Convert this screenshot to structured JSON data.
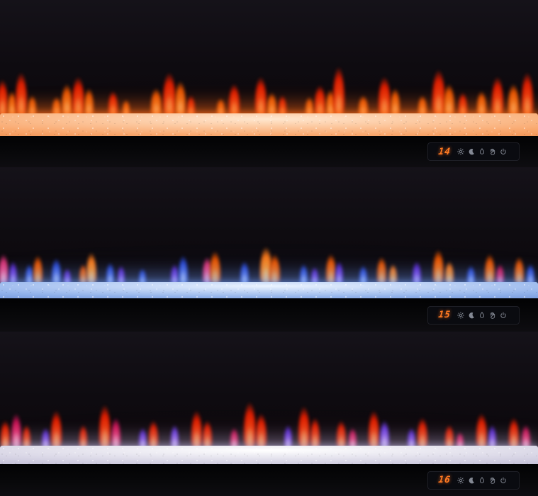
{
  "palette": {
    "digit_color": "#ff7a22",
    "icon_color": "#9aa0ac",
    "panel_bg": "#0a0b10",
    "panel_border": "#1e1f26",
    "bar_color": "#060607",
    "wall_color": "#141119"
  },
  "flame_colors": {
    "red": [
      "#ffb066",
      "#ff5a1c",
      "#e81e00"
    ],
    "orange": [
      "#ffd08a",
      "#ff9232",
      "#f05600"
    ],
    "amber": [
      "#ffe2a8",
      "#ffb347",
      "#ff7a1a"
    ],
    "blue": [
      "#cfe0ff",
      "#7a9bff",
      "#2a4ad8"
    ],
    "purple": [
      "#d8c2ff",
      "#a06aff",
      "#5a2ad0"
    ],
    "pink": [
      "#ffd2e8",
      "#ff7ab0",
      "#e0357a"
    ],
    "magenta": [
      "#ffc2d8",
      "#ff4a86",
      "#d01458"
    ],
    "violet": [
      "#e0ccff",
      "#b07aff",
      "#6a3ae0"
    ]
  },
  "display": {
    "icons": [
      "brightness",
      "moon",
      "flame",
      "hand",
      "power"
    ]
  },
  "sections": [
    {
      "id": "fireplace-orange-mode",
      "temperature": "14",
      "bed": {
        "hi": "#ffe7cf",
        "base": "#f9a86e",
        "mid": "#e06a20",
        "glow": "rgba(255,110,25,0.55)",
        "ambient": "rgba(255,70,10,0.22)"
      },
      "flames": [
        [
          0.5,
          52,
          15,
          "red"
        ],
        [
          2.2,
          36,
          12,
          "orange"
        ],
        [
          4,
          62,
          16,
          "red"
        ],
        [
          6,
          30,
          11,
          "orange"
        ],
        [
          10.5,
          28,
          12,
          "orange"
        ],
        [
          12.5,
          46,
          15,
          "orange"
        ],
        [
          14.5,
          56,
          17,
          "red"
        ],
        [
          16.5,
          40,
          13,
          "orange"
        ],
        [
          21,
          36,
          13,
          "red"
        ],
        [
          23.5,
          24,
          10,
          "orange"
        ],
        [
          29,
          40,
          15,
          "orange"
        ],
        [
          31.5,
          62,
          18,
          "red"
        ],
        [
          33.5,
          50,
          15,
          "orange"
        ],
        [
          35.5,
          30,
          11,
          "red"
        ],
        [
          41,
          26,
          11,
          "orange"
        ],
        [
          43.5,
          46,
          15,
          "red"
        ],
        [
          48.5,
          56,
          16,
          "red"
        ],
        [
          50.5,
          34,
          13,
          "orange"
        ],
        [
          52.5,
          30,
          11,
          "red"
        ],
        [
          57.5,
          28,
          11,
          "orange"
        ],
        [
          59.5,
          44,
          15,
          "red"
        ],
        [
          61.5,
          38,
          13,
          "orange"
        ],
        [
          63,
          70,
          16,
          "red"
        ],
        [
          67.5,
          30,
          13,
          "orange"
        ],
        [
          71.5,
          56,
          17,
          "red"
        ],
        [
          73.5,
          40,
          13,
          "orange"
        ],
        [
          78.5,
          30,
          12,
          "orange"
        ],
        [
          81.5,
          66,
          18,
          "red"
        ],
        [
          83.5,
          46,
          15,
          "orange"
        ],
        [
          86,
          34,
          12,
          "red"
        ],
        [
          89.5,
          36,
          13,
          "orange"
        ],
        [
          92.5,
          56,
          16,
          "red"
        ],
        [
          95.5,
          46,
          15,
          "orange"
        ],
        [
          98,
          62,
          16,
          "red"
        ]
      ]
    },
    {
      "id": "fireplace-multicolor-mode",
      "temperature": "15",
      "bed": {
        "hi": "#eaf3ff",
        "base": "#8fb0ea",
        "mid": "#4f74c8",
        "glow": "rgba(110,150,235,0.50)",
        "ambient": "rgba(90,110,220,0.12)"
      },
      "flames": [
        [
          0.7,
          44,
          14,
          "pink"
        ],
        [
          2.5,
          34,
          11,
          "purple"
        ],
        [
          5.5,
          30,
          11,
          "blue"
        ],
        [
          7,
          42,
          13,
          "orange"
        ],
        [
          10.5,
          38,
          13,
          "blue"
        ],
        [
          12.5,
          24,
          10,
          "purple"
        ],
        [
          15.5,
          30,
          11,
          "orange"
        ],
        [
          17,
          46,
          14,
          "amber"
        ],
        [
          20.5,
          32,
          11,
          "blue"
        ],
        [
          22.5,
          28,
          10,
          "purple"
        ],
        [
          26.5,
          24,
          10,
          "blue"
        ],
        [
          32.5,
          30,
          11,
          "purple"
        ],
        [
          34,
          42,
          13,
          "blue"
        ],
        [
          38.5,
          40,
          13,
          "pink"
        ],
        [
          40,
          48,
          15,
          "orange"
        ],
        [
          45.5,
          34,
          12,
          "blue"
        ],
        [
          49.5,
          54,
          17,
          "amber"
        ],
        [
          51,
          44,
          15,
          "orange"
        ],
        [
          56.5,
          30,
          11,
          "blue"
        ],
        [
          58.5,
          26,
          10,
          "purple"
        ],
        [
          61.5,
          44,
          14,
          "orange"
        ],
        [
          63,
          34,
          11,
          "purple"
        ],
        [
          67.5,
          28,
          11,
          "blue"
        ],
        [
          71,
          40,
          13,
          "orange"
        ],
        [
          73,
          30,
          11,
          "amber"
        ],
        [
          77.5,
          34,
          12,
          "purple"
        ],
        [
          81.5,
          50,
          15,
          "orange"
        ],
        [
          83.5,
          34,
          12,
          "amber"
        ],
        [
          87.5,
          28,
          11,
          "blue"
        ],
        [
          91,
          44,
          14,
          "orange"
        ],
        [
          93,
          30,
          11,
          "magenta"
        ],
        [
          96.5,
          40,
          13,
          "orange"
        ],
        [
          98.6,
          30,
          11,
          "blue"
        ]
      ]
    },
    {
      "id": "fireplace-red-mode",
      "temperature": "16",
      "bed": {
        "hi": "#ffffff",
        "base": "#d3d0e2",
        "mid": "#a29ec0",
        "glow": "rgba(190,185,225,0.45)",
        "ambient": "rgba(200,60,100,0.12)"
      },
      "flames": [
        [
          1,
          40,
          13,
          "red"
        ],
        [
          3,
          50,
          14,
          "magenta"
        ],
        [
          5,
          34,
          11,
          "red"
        ],
        [
          8.5,
          30,
          11,
          "purple"
        ],
        [
          10.5,
          54,
          15,
          "red"
        ],
        [
          15.5,
          34,
          11,
          "red"
        ],
        [
          19.5,
          62,
          16,
          "red"
        ],
        [
          21.5,
          44,
          13,
          "magenta"
        ],
        [
          26.5,
          30,
          11,
          "purple"
        ],
        [
          28.5,
          40,
          13,
          "red"
        ],
        [
          32.5,
          34,
          11,
          "violet"
        ],
        [
          36.5,
          54,
          15,
          "red"
        ],
        [
          38.5,
          40,
          13,
          "red"
        ],
        [
          43.5,
          30,
          11,
          "magenta"
        ],
        [
          46.5,
          66,
          17,
          "red"
        ],
        [
          48.5,
          50,
          15,
          "red"
        ],
        [
          53.5,
          34,
          11,
          "purple"
        ],
        [
          56.5,
          60,
          16,
          "red"
        ],
        [
          58.5,
          44,
          13,
          "red"
        ],
        [
          63.5,
          40,
          13,
          "red"
        ],
        [
          65.5,
          30,
          11,
          "magenta"
        ],
        [
          69.5,
          54,
          15,
          "red"
        ],
        [
          71.5,
          40,
          13,
          "violet"
        ],
        [
          76.5,
          30,
          11,
          "purple"
        ],
        [
          78.5,
          44,
          14,
          "red"
        ],
        [
          83.5,
          34,
          12,
          "red"
        ],
        [
          85.5,
          24,
          10,
          "magenta"
        ],
        [
          89.5,
          50,
          15,
          "red"
        ],
        [
          91.5,
          34,
          11,
          "purple"
        ],
        [
          95.5,
          44,
          14,
          "red"
        ],
        [
          97.8,
          34,
          12,
          "magenta"
        ]
      ]
    }
  ]
}
